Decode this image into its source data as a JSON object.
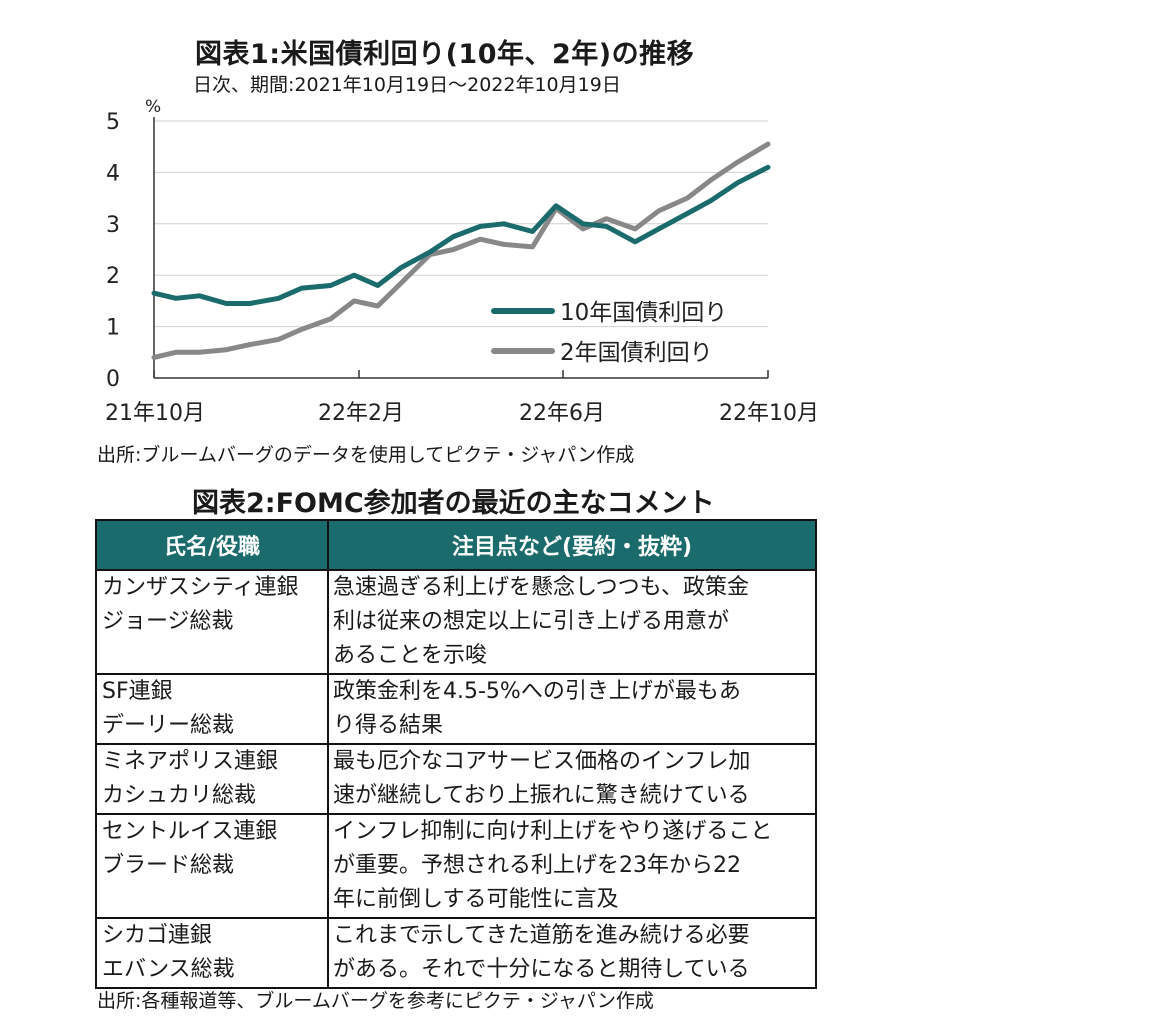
{
  "chart": {
    "title": "図表1:米国債利回り(10年、2年)の推移",
    "subtitle": "日次、期間:2021年10月19日～2022年10月19日",
    "unit": "%",
    "y_ticks": [
      "0",
      "1",
      "2",
      "3",
      "4",
      "5"
    ],
    "x_ticks": [
      "21年10月",
      "22年2月",
      "22年6月",
      "22年10月"
    ],
    "source": "出所:ブルームバーグのデータを使用してピクテ・ジャパン作成"
  },
  "chart_data": {
    "type": "line",
    "title": "図表1:米国債利回り(10年、2年)の推移",
    "ylabel": "%",
    "ylim": [
      0,
      5
    ],
    "x_ticks": [
      "21年10月",
      "22年2月",
      "22年6月",
      "22年10月"
    ],
    "xlim": [
      "2021-10-19",
      "2022-10-19"
    ],
    "grid": "horizontal",
    "legend": "bottom-right",
    "series": [
      {
        "name": "10年国債利回り",
        "color": "#1b6b6c",
        "x": [
          "2021-10-19",
          "2021-11-01",
          "2021-11-15",
          "2021-12-01",
          "2021-12-15",
          "2022-01-01",
          "2022-01-15",
          "2022-02-01",
          "2022-02-15",
          "2022-03-01",
          "2022-03-15",
          "2022-04-01",
          "2022-04-15",
          "2022-05-01",
          "2022-05-15",
          "2022-06-01",
          "2022-06-15",
          "2022-07-01",
          "2022-07-15",
          "2022-08-01",
          "2022-08-15",
          "2022-09-01",
          "2022-09-15",
          "2022-10-01",
          "2022-10-19"
        ],
        "values": [
          1.65,
          1.55,
          1.6,
          1.45,
          1.45,
          1.55,
          1.75,
          1.8,
          2.0,
          1.8,
          2.15,
          2.45,
          2.75,
          2.95,
          3.0,
          2.85,
          3.35,
          3.0,
          2.95,
          2.65,
          2.9,
          3.2,
          3.45,
          3.8,
          4.1
        ]
      },
      {
        "name": "2年国債利回り",
        "color": "#888888",
        "x": [
          "2021-10-19",
          "2021-11-01",
          "2021-11-15",
          "2021-12-01",
          "2021-12-15",
          "2022-01-01",
          "2022-01-15",
          "2022-02-01",
          "2022-02-15",
          "2022-03-01",
          "2022-03-15",
          "2022-04-01",
          "2022-04-15",
          "2022-05-01",
          "2022-05-15",
          "2022-06-01",
          "2022-06-15",
          "2022-07-01",
          "2022-07-15",
          "2022-08-01",
          "2022-08-15",
          "2022-09-01",
          "2022-09-15",
          "2022-10-01",
          "2022-10-19"
        ],
        "values": [
          0.4,
          0.5,
          0.5,
          0.55,
          0.65,
          0.75,
          0.95,
          1.15,
          1.5,
          1.4,
          1.85,
          2.4,
          2.5,
          2.7,
          2.6,
          2.55,
          3.3,
          2.9,
          3.1,
          2.9,
          3.25,
          3.5,
          3.85,
          4.2,
          4.55
        ]
      }
    ]
  },
  "table": {
    "title": "図表2:FOMC参加者の最近の主なコメント",
    "headers": [
      "氏名/役職",
      "注目点など(要約・抜粋)"
    ],
    "rows": [
      {
        "name": "カンザスシティ連銀\nジョージ総裁",
        "comment": "急速過ぎる利上げを懸念しつつも、政策金\n利は従来の想定以上に引き上げる用意が\nあることを示唆"
      },
      {
        "name": "SF連銀\nデーリー総裁",
        "comment": "政策金利を4.5-5%への引き上げが最もあ\nり得る結果"
      },
      {
        "name": "ミネアポリス連銀\nカシュカリ総裁",
        "comment": "最も厄介なコアサービス価格のインフレ加\n速が継続しており上振れに驚き続けている"
      },
      {
        "name": "セントルイス連銀\nブラード総裁",
        "comment": "インフレ抑制に向け利上げをやり遂げること\nが重要。予想される利上げを23年から22\n年に前倒しする可能性に言及"
      },
      {
        "name": "シカゴ連銀\nエバンス総裁",
        "comment": "これまで示してきた道筋を進み続ける必要\nがある。それで十分になると期待している"
      }
    ],
    "source": "出所:各種報道等、ブルームバーグを参考にピクテ・ジャパン作成"
  },
  "colors": {
    "header_bg": "#1b6b6c",
    "ten_year": "#1b6b6c",
    "two_year": "#888888"
  }
}
